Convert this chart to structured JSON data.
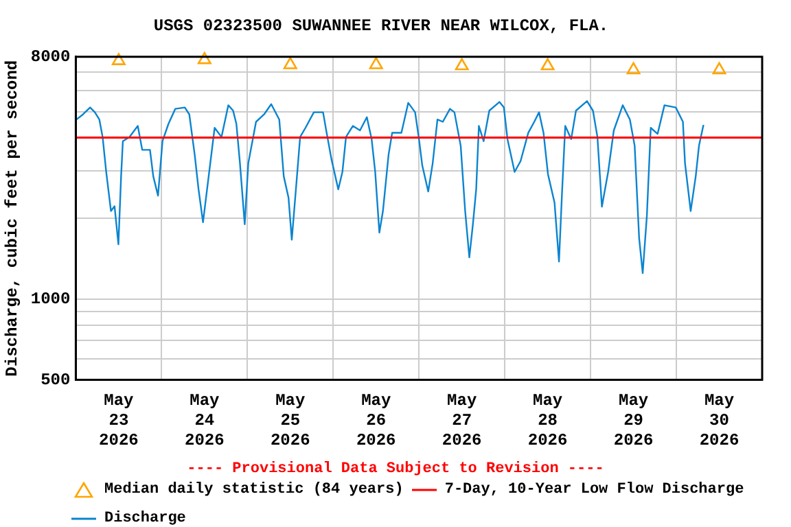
{
  "chart_data": {
    "type": "line",
    "title": "USGS 02323500 SUWANNEE RIVER NEAR WILCOX, FLA.",
    "ylabel": "Discharge, cubic feet per second",
    "log": true,
    "grid": true,
    "legend": "bottom",
    "xlim": [
      "2026-05-23T00:00",
      "2026-05-31T00:00"
    ],
    "xticks": [
      {
        "value": "2026-05-23T12:00",
        "label": "May 23 2026"
      },
      {
        "value": "2026-05-24T00:00",
        "label": null
      },
      {
        "value": "2026-05-24T12:00",
        "label": "May 24 2026"
      },
      {
        "value": "2026-05-25T00:00",
        "label": null
      },
      {
        "value": "2026-05-25T12:00",
        "label": "May 25 2026"
      },
      {
        "value": "2026-05-26T00:00",
        "label": null
      },
      {
        "value": "2026-05-26T12:00",
        "label": "May 26 2026"
      },
      {
        "value": "2026-05-27T00:00",
        "label": null
      },
      {
        "value": "2026-05-27T12:00",
        "label": "May 27 2026"
      },
      {
        "value": "2026-05-28T00:00",
        "label": null
      },
      {
        "value": "2026-05-28T12:00",
        "label": "May 28 2026"
      },
      {
        "value": "2026-05-29T00:00",
        "label": null
      },
      {
        "value": "2026-05-29T12:00",
        "label": "May 29 2026"
      },
      {
        "value": "2026-05-30T00:00",
        "label": null
      },
      {
        "value": "2026-05-30T12:00",
        "label": "May 30 2026"
      }
    ],
    "ylim": [
      500,
      8000
    ],
    "yticks": [
      500,
      {
        "value": 600,
        "label": null
      },
      {
        "value": 700,
        "label": null
      },
      {
        "value": 800,
        "label": null
      },
      {
        "value": 900,
        "label": null
      },
      1000,
      {
        "value": 2000,
        "label": null
      },
      {
        "value": 3000,
        "label": null
      },
      {
        "value": 4000,
        "label": null
      },
      {
        "value": 5000,
        "label": null
      },
      {
        "value": 6000,
        "label": null
      },
      {
        "value": 7000,
        "label": null
      },
      8000
    ],
    "ref_lines": [
      {
        "axis": "y",
        "value": 4000,
        "label": "7-Day, 10-Year Low Flow Discharge",
        "color": "#ff0000"
      }
    ],
    "annotations": [
      "---- Provisional Data Subject to Revision ----"
    ],
    "series": [
      {
        "name": "Median daily statistic (84 years)",
        "type": "scatter",
        "marker": "triangle",
        "color": "#ffa500",
        "x": [
          "2026-05-23T12:00",
          "2026-05-24T12:00",
          "2026-05-25T12:00",
          "2026-05-26T12:00",
          "2026-05-27T12:00",
          "2026-05-28T12:00",
          "2026-05-29T12:00",
          "2026-05-30T12:00"
        ],
        "values": [
          7730,
          7800,
          7470,
          7470,
          7400,
          7400,
          7150,
          7150
        ]
      },
      {
        "name": "Discharge",
        "marker": "none",
        "color": "#0b84d0",
        "x": [
          "2026-05-23T00:00",
          "2026-05-23T02:00",
          "2026-05-23T04:00",
          "2026-05-23T05:20",
          "2026-05-23T06:35",
          "2026-05-23T07:30",
          "2026-05-23T08:30",
          "2026-05-23T09:50",
          "2026-05-23T10:50",
          "2026-05-23T11:55",
          "2026-05-23T12:40",
          "2026-05-23T13:10",
          "2026-05-23T15:00",
          "2026-05-23T17:20",
          "2026-05-23T18:35",
          "2026-05-23T20:45",
          "2026-05-23T21:40",
          "2026-05-23T23:00",
          "2026-05-24T00:15",
          "2026-05-24T01:55",
          "2026-05-24T03:50",
          "2026-05-24T06:30",
          "2026-05-24T07:45",
          "2026-05-24T09:15",
          "2026-05-24T10:20",
          "2026-05-24T11:35",
          "2026-05-24T13:10",
          "2026-05-24T14:50",
          "2026-05-24T16:45",
          "2026-05-24T18:40",
          "2026-05-24T20:00",
          "2026-05-24T20:55",
          "2026-05-24T21:55",
          "2026-05-24T23:15",
          "2026-05-25T00:15",
          "2026-05-25T02:25",
          "2026-05-25T04:40",
          "2026-05-25T06:40",
          "2026-05-25T08:55",
          "2026-05-25T10:10",
          "2026-05-25T11:30",
          "2026-05-25T12:25",
          "2026-05-25T13:40",
          "2026-05-25T14:45",
          "2026-05-25T16:15",
          "2026-05-25T18:35",
          "2026-05-25T21:10",
          "2026-05-25T22:10",
          "2026-05-25T23:30",
          "2026-05-26T01:25",
          "2026-05-26T02:35",
          "2026-05-26T03:35",
          "2026-05-26T05:30",
          "2026-05-26T07:30",
          "2026-05-26T09:25",
          "2026-05-26T10:45",
          "2026-05-26T11:45",
          "2026-05-26T12:55",
          "2026-05-26T13:55",
          "2026-05-26T15:30",
          "2026-05-26T16:30",
          "2026-05-26T19:05",
          "2026-05-26T21:00",
          "2026-05-26T22:55",
          "2026-05-27T00:00",
          "2026-05-27T00:55",
          "2026-05-27T02:35",
          "2026-05-27T03:50",
          "2026-05-27T05:10",
          "2026-05-27T06:40",
          "2026-05-27T08:40",
          "2026-05-27T09:55",
          "2026-05-27T11:40",
          "2026-05-27T12:55",
          "2026-05-27T14:05",
          "2026-05-27T15:05",
          "2026-05-27T16:00",
          "2026-05-27T16:45",
          "2026-05-27T18:05",
          "2026-05-27T19:40",
          "2026-05-27T22:30",
          "2026-05-27T23:45",
          "2026-05-28T00:45",
          "2026-05-28T02:45",
          "2026-05-28T04:25",
          "2026-05-28T06:35",
          "2026-05-28T08:15",
          "2026-05-28T09:35",
          "2026-05-28T10:50",
          "2026-05-28T12:05",
          "2026-05-28T13:55",
          "2026-05-28T15:10",
          "2026-05-28T16:00",
          "2026-05-28T16:55",
          "2026-05-28T18:35",
          "2026-05-28T19:55",
          "2026-05-28T23:00",
          "2026-05-29T00:40",
          "2026-05-29T01:55",
          "2026-05-29T03:10",
          "2026-05-29T04:55",
          "2026-05-29T06:30",
          "2026-05-29T09:00",
          "2026-05-29T11:00",
          "2026-05-29T12:20",
          "2026-05-29T13:35",
          "2026-05-29T14:35",
          "2026-05-29T15:45",
          "2026-05-29T16:50",
          "2026-05-29T18:45",
          "2026-05-29T20:40",
          "2026-05-29T23:50",
          "2026-05-30T01:50",
          "2026-05-30T02:25",
          "2026-05-30T04:00",
          "2026-05-30T05:25",
          "2026-05-30T06:20",
          "2026-05-30T07:35"
        ],
        "values": [
          4650,
          4880,
          5180,
          4970,
          4670,
          4020,
          2980,
          2130,
          2220,
          1600,
          2870,
          3880,
          4020,
          4420,
          3600,
          3600,
          2870,
          2430,
          3880,
          4500,
          5120,
          5180,
          4880,
          3460,
          2565,
          1935,
          2870,
          4350,
          4020,
          5280,
          5040,
          4500,
          3210,
          1900,
          3210,
          4580,
          4880,
          5330,
          4670,
          2870,
          2390,
          1665,
          2660,
          4020,
          4350,
          4970,
          4970,
          4170,
          3330,
          2565,
          2980,
          4020,
          4420,
          4255,
          4765,
          3950,
          2980,
          1770,
          2130,
          3460,
          4170,
          4170,
          5390,
          4970,
          3950,
          3150,
          2520,
          3210,
          4670,
          4580,
          5120,
          4970,
          3730,
          2130,
          1430,
          1900,
          2565,
          4420,
          3880,
          5040,
          5430,
          5180,
          3950,
          2980,
          3270,
          4170,
          4580,
          4970,
          4170,
          2920,
          2290,
          1380,
          2470,
          4420,
          3950,
          5040,
          5470,
          5040,
          4020,
          2210,
          2980,
          4255,
          5280,
          4670,
          3730,
          1690,
          1250,
          2045,
          4350,
          4130,
          5280,
          5180,
          4580,
          3210,
          2130,
          2870,
          3730,
          4460
        ]
      }
    ]
  }
}
